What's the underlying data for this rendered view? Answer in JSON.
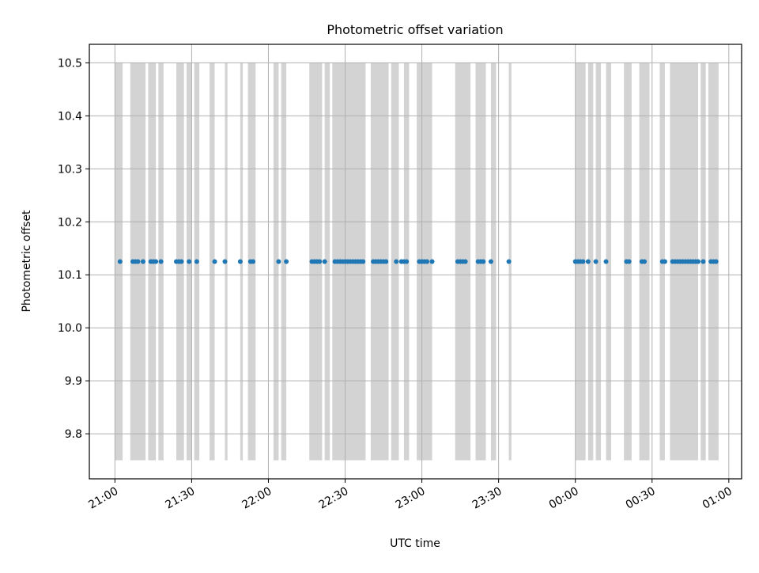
{
  "chart_data": {
    "type": "scatter",
    "title": "Photometric offset variation",
    "xlabel": "UTC time",
    "ylabel": "Photometric offset",
    "xlim": [
      "20:50",
      "25:05"
    ],
    "ylim": [
      9.715,
      10.535
    ],
    "grid": true,
    "x_ticks": [
      {
        "time": "21:00",
        "label": "21:00"
      },
      {
        "time": "21:30",
        "label": "21:30"
      },
      {
        "time": "22:00",
        "label": "22:00"
      },
      {
        "time": "22:30",
        "label": "22:30"
      },
      {
        "time": "23:00",
        "label": "23:00"
      },
      {
        "time": "23:30",
        "label": "23:30"
      },
      {
        "time": "24:00",
        "label": "00:00"
      },
      {
        "time": "24:30",
        "label": "00:30"
      },
      {
        "time": "25:00",
        "label": "01:00"
      }
    ],
    "y_ticks": [
      9.8,
      9.9,
      10.0,
      10.1,
      10.2,
      10.3,
      10.4,
      10.5
    ],
    "y_tick_labels": [
      "9.8",
      "9.9",
      "10.0",
      "10.1",
      "10.2",
      "10.3",
      "10.4",
      "10.5"
    ],
    "colors": {
      "points": "#1f77b4",
      "bands": "#d3d3d3",
      "grid": "#b0b0b0"
    },
    "bands": {
      "ymin": 9.75,
      "ymax": 10.5,
      "ranges": [
        [
          "21:00",
          "21:03"
        ],
        [
          "21:06",
          "21:12"
        ],
        [
          "21:13",
          "21:16"
        ],
        [
          "21:17",
          "21:19"
        ],
        [
          "21:24",
          "21:27"
        ],
        [
          "21:28",
          "21:30"
        ],
        [
          "21:31",
          "21:33"
        ],
        [
          "21:37",
          "21:39"
        ],
        [
          "21:43",
          "21:44"
        ],
        [
          "21:49",
          "21:50"
        ],
        [
          "21:52",
          "21:55"
        ],
        [
          "22:02",
          "22:04"
        ],
        [
          "22:05",
          "22:07"
        ],
        [
          "22:16",
          "22:21"
        ],
        [
          "22:22",
          "22:24"
        ],
        [
          "22:25",
          "22:38"
        ],
        [
          "22:40",
          "22:47"
        ],
        [
          "22:48",
          "22:51"
        ],
        [
          "22:53",
          "22:55"
        ],
        [
          "22:58",
          "23:04"
        ],
        [
          "23:13",
          "23:19"
        ],
        [
          "23:21",
          "23:25"
        ],
        [
          "23:27",
          "23:29"
        ],
        [
          "23:34",
          "23:35"
        ],
        [
          "24:00",
          "24:04"
        ],
        [
          "24:05",
          "24:07"
        ],
        [
          "24:08",
          "24:10"
        ],
        [
          "24:12",
          "24:14"
        ],
        [
          "24:19",
          "24:22"
        ],
        [
          "24:25",
          "24:29"
        ],
        [
          "24:33",
          "24:35"
        ],
        [
          "24:37",
          "24:48"
        ],
        [
          "24:49",
          "24:51"
        ],
        [
          "24:52",
          "24:56"
        ]
      ]
    },
    "series": [
      {
        "y": 10.125,
        "x": [
          "21:02",
          "21:07",
          "21:08",
          "21:09",
          "21:11",
          "21:14",
          "21:15",
          "21:16",
          "21:18",
          "21:24",
          "21:25",
          "21:26",
          "21:29",
          "21:32",
          "21:39",
          "21:43",
          "21:49",
          "21:53",
          "21:54",
          "22:04",
          "22:07",
          "22:17",
          "22:18",
          "22:19",
          "22:20",
          "22:22",
          "22:26",
          "22:27",
          "22:28",
          "22:29",
          "22:30",
          "22:31",
          "22:32",
          "22:33",
          "22:34",
          "22:35",
          "22:36",
          "22:37",
          "22:41",
          "22:42",
          "22:43",
          "22:44",
          "22:45",
          "22:46",
          "22:50",
          "22:52",
          "22:53",
          "22:54",
          "22:59",
          "23:00",
          "23:01",
          "23:02",
          "23:04",
          "23:14",
          "23:15",
          "23:16",
          "23:17",
          "23:22",
          "23:23",
          "23:24",
          "23:27",
          "23:34",
          "24:00",
          "24:01",
          "24:02",
          "24:03",
          "24:05",
          "24:08",
          "24:12",
          "24:20",
          "24:21",
          "24:26",
          "24:27",
          "24:34",
          "24:35",
          "24:38",
          "24:39",
          "24:40",
          "24:41",
          "24:42",
          "24:43",
          "24:44",
          "24:45",
          "24:46",
          "24:47",
          "24:48",
          "24:50",
          "24:53",
          "24:54",
          "24:55"
        ]
      }
    ]
  }
}
